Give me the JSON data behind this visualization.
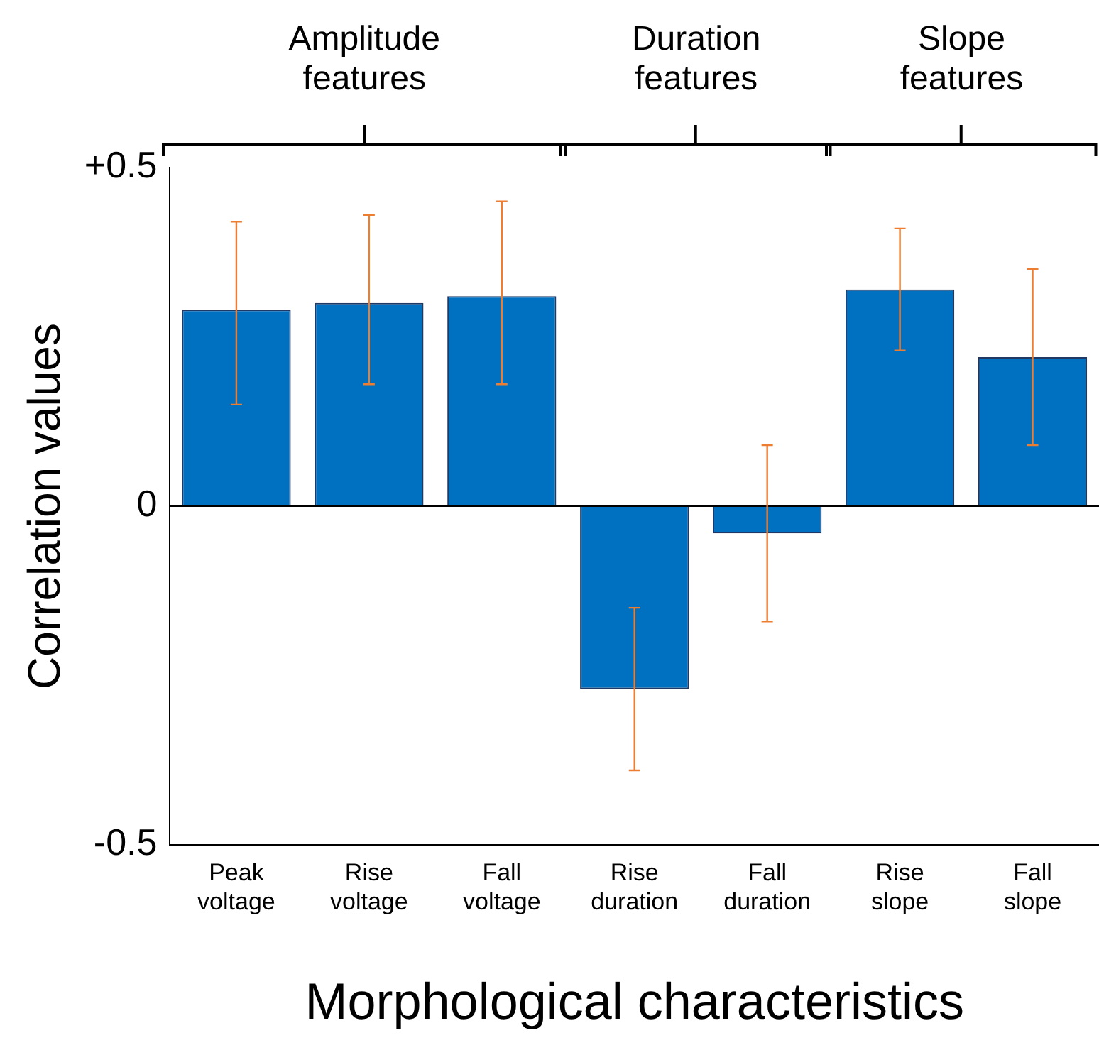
{
  "chart_data": {
    "type": "bar",
    "xlabel": "Morphological characteristics",
    "ylabel": "Correlation values",
    "categories": [
      "Peak voltage",
      "Rise voltage",
      "Fall voltage",
      "Rise duration",
      "Fall duration",
      "Rise slope",
      "Fall slope"
    ],
    "values": [
      0.29,
      0.3,
      0.31,
      -0.27,
      -0.04,
      0.32,
      0.22
    ],
    "errors": [
      [
        0.15,
        0.42
      ],
      [
        0.18,
        0.43
      ],
      [
        0.18,
        0.45
      ],
      [
        -0.39,
        -0.15
      ],
      [
        -0.17,
        0.09
      ],
      [
        0.23,
        0.41
      ],
      [
        0.09,
        0.35
      ]
    ],
    "color": "#0070c0",
    "ylim": [
      -0.5,
      0.5
    ],
    "yticks": [
      {
        "value": -0.5,
        "label": "-0.5"
      },
      0,
      {
        "value": 0.5,
        "label": "+0.5"
      }
    ],
    "ref_lines": [
      {
        "axis": "y",
        "value": 0
      }
    ],
    "annotations": [
      "Amplitude features",
      "Duration features",
      "Slope features"
    ],
    "grid": false,
    "legend": false
  }
}
